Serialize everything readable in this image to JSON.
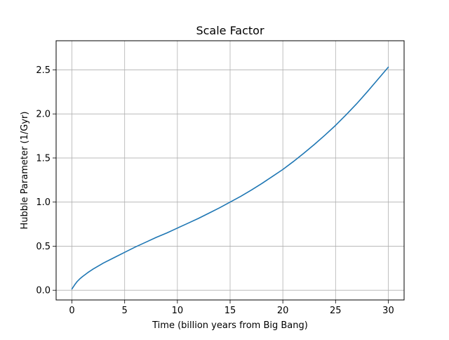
{
  "chart_data": {
    "type": "line",
    "title": "Scale Factor",
    "xlabel": "Time (billion years from Big Bang)",
    "ylabel": "Hubble Parameter (1/Gyr)",
    "xlim": [
      -1.5,
      31.5
    ],
    "ylim": [
      -0.11,
      2.83
    ],
    "xticks": [
      0,
      5,
      10,
      15,
      20,
      25,
      30
    ],
    "xtick_labels": [
      "0",
      "5",
      "10",
      "15",
      "20",
      "25",
      "30"
    ],
    "yticks": [
      0.0,
      0.5,
      1.0,
      1.5,
      2.0,
      2.5
    ],
    "ytick_labels": [
      "0.0",
      "0.5",
      "1.0",
      "1.5",
      "2.0",
      "2.5"
    ],
    "grid": true,
    "legend": "none",
    "series": [
      {
        "color": "#1f77b4",
        "x": [
          0,
          0.25,
          0.5,
          0.75,
          1,
          1.5,
          2,
          2.5,
          3,
          4,
          5,
          6,
          7,
          8,
          9,
          10,
          11,
          12,
          13,
          14,
          15,
          16,
          17,
          18,
          19,
          20,
          21,
          22,
          23,
          24,
          25,
          26,
          27,
          28,
          29,
          30
        ],
        "y": [
          0.015,
          0.06,
          0.1,
          0.13,
          0.155,
          0.2,
          0.24,
          0.275,
          0.31,
          0.37,
          0.43,
          0.49,
          0.545,
          0.6,
          0.65,
          0.705,
          0.76,
          0.815,
          0.875,
          0.935,
          1.0,
          1.065,
          1.135,
          1.21,
          1.29,
          1.37,
          1.46,
          1.555,
          1.655,
          1.76,
          1.87,
          1.99,
          2.115,
          2.25,
          2.39,
          2.53
        ]
      }
    ]
  }
}
